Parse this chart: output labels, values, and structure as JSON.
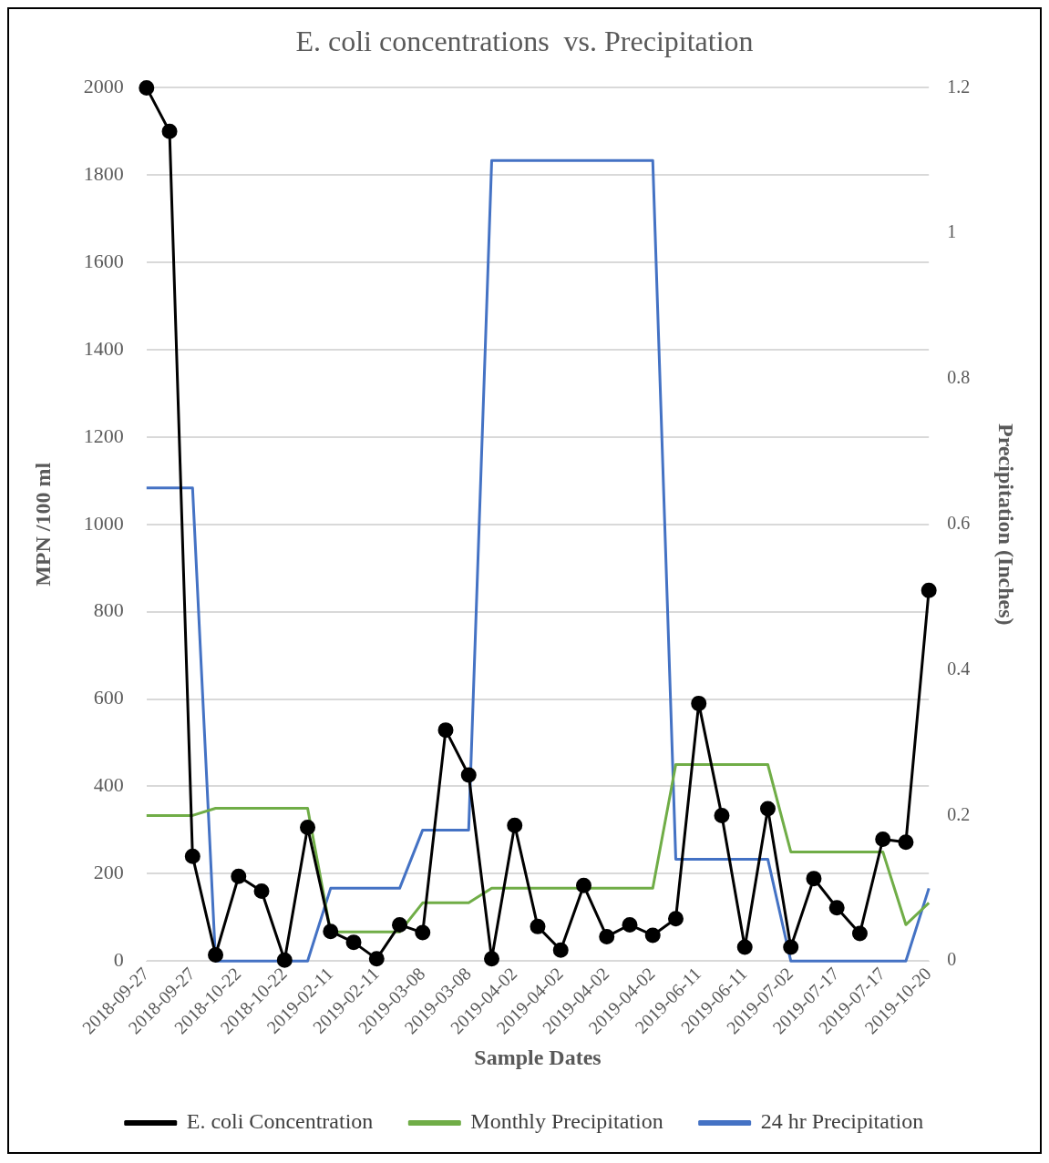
{
  "chart_data": {
    "type": "line",
    "title": "E. coli concentrations  vs. Precipitation",
    "xlabel": "Sample Dates",
    "ylabel": "MPN /100 ml",
    "y2label": "Precipitation (Inches)",
    "categories": [
      "2018-09-27",
      null,
      "2018-09-27",
      null,
      "2018-10-22",
      null,
      "2018-10-22",
      null,
      "2019-02-11",
      null,
      "2019-02-11",
      null,
      "2019-03-08",
      null,
      "2019-03-08",
      null,
      "2019-04-02",
      null,
      "2019-04-02",
      null,
      "2019-04-02",
      null,
      "2019-04-02",
      null,
      "2019-06-11",
      null,
      "2019-06-11",
      null,
      "2019-07-02",
      null,
      "2019-07-17",
      null,
      "2019-07-17",
      null,
      "2019-10-20"
    ],
    "series": [
      {
        "name": "E. coli Concentration",
        "color": "#000000",
        "marker": "circle",
        "values": [
          2000,
          1900,
          240,
          14,
          194,
          160,
          2,
          306,
          68,
          43,
          5,
          83,
          65,
          529,
          426,
          5,
          311,
          79,
          25,
          173,
          56,
          83,
          59,
          97,
          590,
          333,
          32,
          349,
          32,
          189,
          122,
          63,
          279,
          272,
          849
        ]
      },
      {
        "name": "Monthly Precipitation",
        "color": "#70ad47",
        "axis": "y2",
        "marker": "none",
        "values": [
          0.2,
          0.2,
          0.2,
          0.21,
          0.21,
          0.21,
          0.21,
          0.21,
          0.04,
          0.04,
          0.04,
          0.04,
          0.08,
          0.08,
          0.08,
          0.1,
          0.1,
          0.1,
          0.1,
          0.1,
          0.1,
          0.1,
          0.1,
          0.27,
          0.27,
          0.27,
          0.27,
          0.27,
          0.15,
          0.15,
          0.15,
          0.15,
          0.15,
          0.05,
          0.08
        ]
      },
      {
        "name": "24 hr Precipitation",
        "color": "#4472c4",
        "axis": "y2",
        "marker": "none",
        "values": [
          0.65,
          0.65,
          0.65,
          0,
          0,
          0,
          0,
          0,
          0.1,
          0.1,
          0.1,
          0.1,
          0.18,
          0.18,
          0.18,
          1.1,
          1.1,
          1.1,
          1.1,
          1.1,
          1.1,
          1.1,
          1.1,
          0.14,
          0.14,
          0.14,
          0.14,
          0.14,
          0,
          0,
          0,
          0,
          0,
          0,
          0.1
        ]
      }
    ],
    "ylim": [
      0,
      2000
    ],
    "yticks": [
      0,
      200,
      400,
      600,
      800,
      1000,
      1200,
      1400,
      1600,
      1800,
      2000
    ],
    "y2lim": [
      0,
      1.2
    ],
    "y2ticks": [
      0,
      0.2,
      0.4,
      0.6,
      0.8,
      1,
      1.2
    ],
    "grid": "y",
    "legend": "bottom",
    "line_style": "solid"
  }
}
